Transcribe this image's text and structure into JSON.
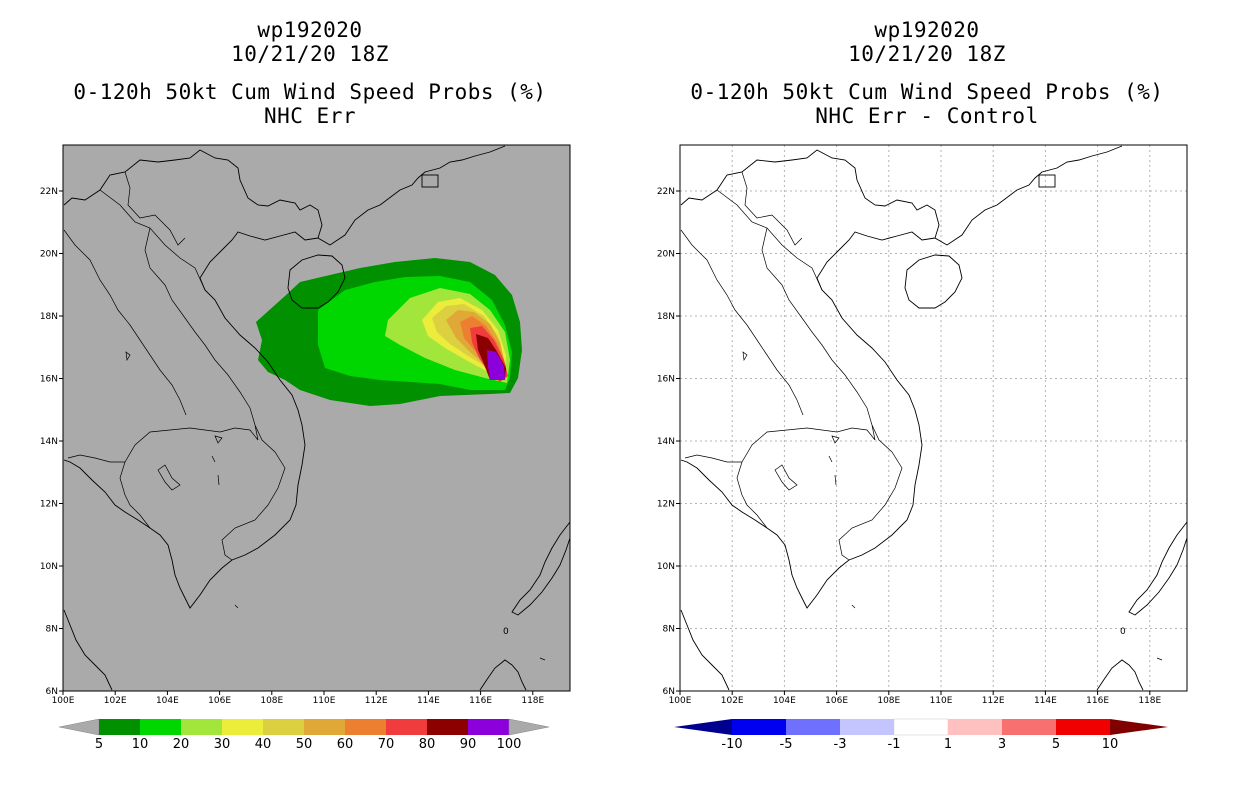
{
  "left": {
    "title": [
      "wp192020",
      "10/21/20 18Z",
      "0-120h 50kt Cum Wind Speed Probs (%)",
      "NHC Err"
    ],
    "colorbar": {
      "colors": [
        "#009000",
        "#00d600",
        "#a2e63c",
        "#ecec3a",
        "#dcd040",
        "#e0a836",
        "#ec8030",
        "#f03c3c",
        "#8c0000",
        "#8c00dc"
      ],
      "labels": [
        "5",
        "10",
        "20",
        "30",
        "40",
        "50",
        "60",
        "70",
        "80",
        "90",
        "100"
      ]
    }
  },
  "right": {
    "title": [
      "wp192020",
      "10/21/20 18Z",
      "0-120h 50kt Cum Wind Speed Probs (%)",
      "NHC Err - Control"
    ],
    "colorbar": {
      "colors": [
        "#0000f0",
        "#7070ff",
        "#c4c4ff",
        "#ffffff",
        "#ffc0c0",
        "#f87070",
        "#f00000"
      ],
      "end_colors": [
        "#000090",
        "#800000"
      ],
      "labels": [
        "-10",
        "-5",
        "-3",
        "-1",
        "1",
        "3",
        "5",
        "10"
      ]
    }
  },
  "axes": {
    "lon_labels": [
      "100E",
      "102E",
      "104E",
      "106E",
      "108E",
      "110E",
      "112E",
      "114E",
      "116E",
      "118E"
    ],
    "lat_labels": [
      "6N",
      "8N",
      "10N",
      "12N",
      "14N",
      "16N",
      "18N",
      "20N",
      "22N"
    ]
  },
  "map_text": {
    "island_marker": "0"
  },
  "colors": {
    "ocean_left": "#aaaaaa",
    "coast": "#000000",
    "grid": "#b4b4b4"
  }
}
